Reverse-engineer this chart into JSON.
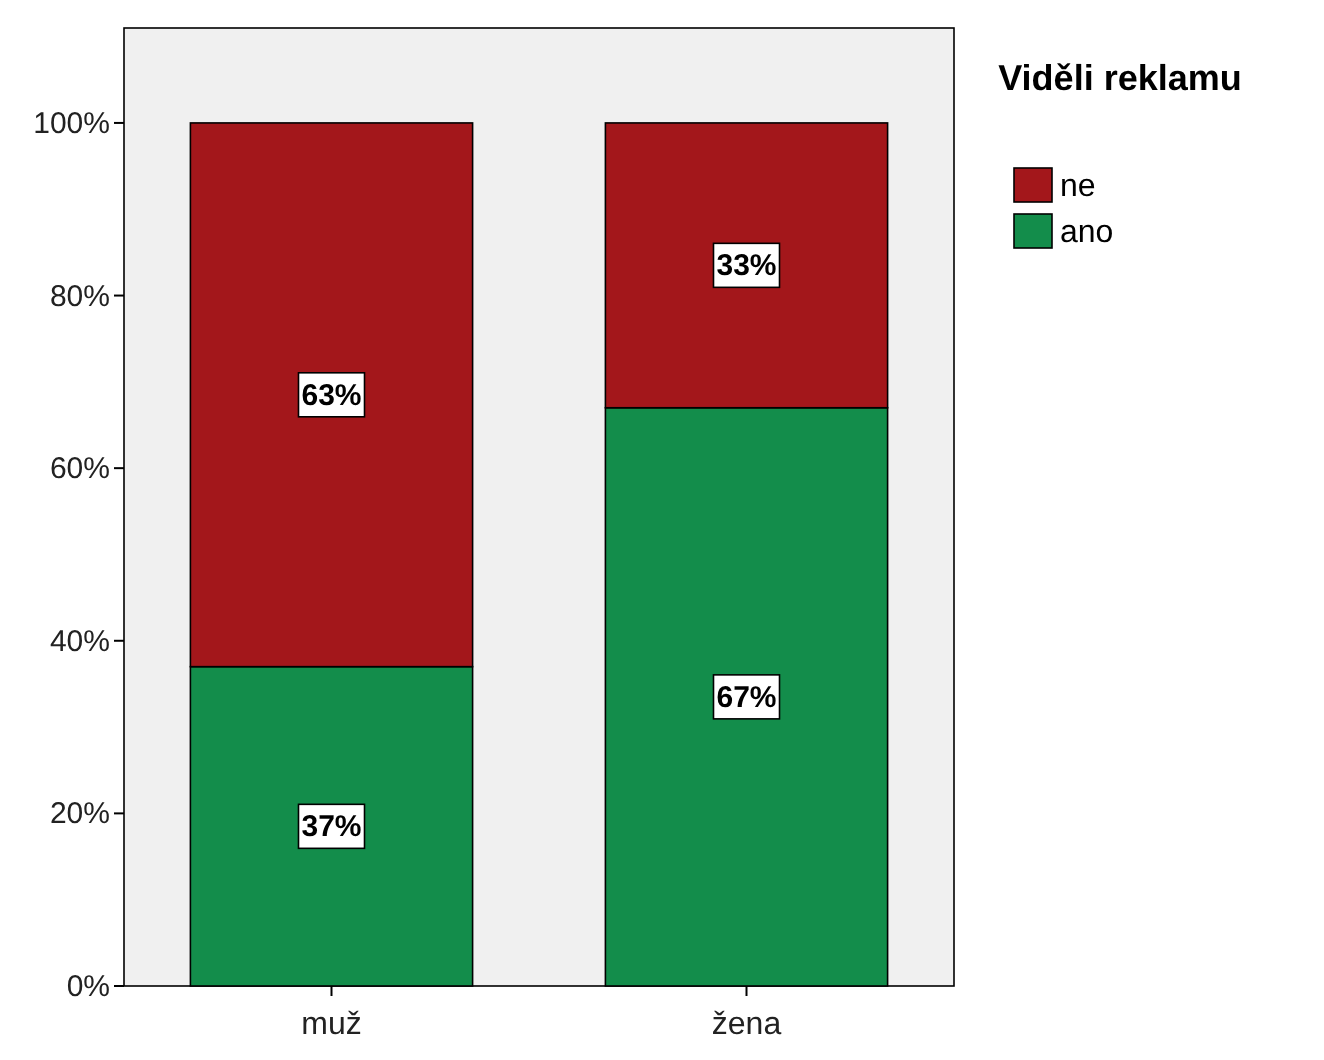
{
  "chart_data": {
    "type": "bar",
    "stacked": true,
    "categories": [
      "muž",
      "žena"
    ],
    "series": [
      {
        "name": "ano",
        "color": "#138d4b",
        "values": [
          37,
          67
        ],
        "value_labels": [
          "37%",
          "67%"
        ]
      },
      {
        "name": "ne",
        "color": "#a3171b",
        "values": [
          63,
          33
        ],
        "value_labels": [
          "63%",
          "33%"
        ]
      }
    ],
    "ylim": [
      0,
      111
    ],
    "yticks": [
      {
        "value": 0,
        "label": "0%"
      },
      {
        "value": 20,
        "label": "20%"
      },
      {
        "value": 40,
        "label": "40%"
      },
      {
        "value": 60,
        "label": "60%"
      },
      {
        "value": 80,
        "label": "80%"
      },
      {
        "value": 100,
        "label": "100%"
      }
    ],
    "legend_title": "Viděli reklamu",
    "legend": "right",
    "grid": false
  }
}
